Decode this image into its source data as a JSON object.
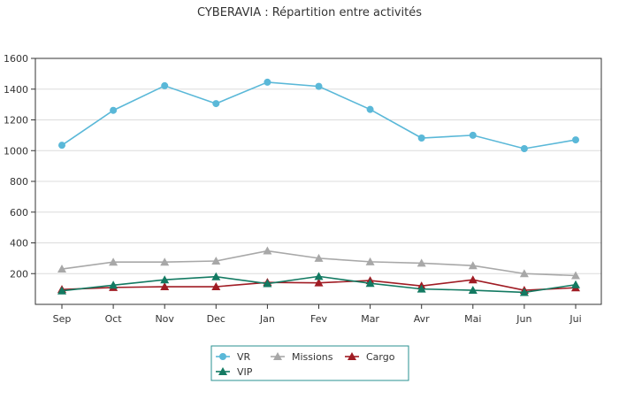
{
  "chart_data": {
    "type": "line",
    "title": "CYBERAVIA : Répartition entre activités",
    "xlabel": "",
    "ylabel": "",
    "ylim": [
      0,
      1600
    ],
    "yticks": [
      200,
      400,
      600,
      800,
      1000,
      1200,
      1400,
      1600
    ],
    "grid": true,
    "legend_position": "bottom",
    "categories": [
      "Sep",
      "Oct",
      "Nov",
      "Dec",
      "Jan",
      "Fev",
      "Mar",
      "Avr",
      "Mai",
      "Jun",
      "Jui"
    ],
    "series": [
      {
        "name": "VR",
        "color": "#5ab8d8",
        "marker": "circle",
        "values": [
          1035,
          1262,
          1422,
          1306,
          1445,
          1418,
          1268,
          1082,
          1100,
          1013,
          1070
        ]
      },
      {
        "name": "Missions",
        "color": "#a8a8a8",
        "marker": "triangle",
        "values": [
          230,
          275,
          275,
          282,
          348,
          300,
          277,
          268,
          252,
          200,
          187
        ]
      },
      {
        "name": "Cargo",
        "color": "#a01c24",
        "marker": "triangle",
        "values": [
          97,
          110,
          115,
          115,
          143,
          140,
          155,
          120,
          160,
          92,
          108
        ]
      },
      {
        "name": "VIP",
        "color": "#137a62",
        "marker": "triangle",
        "values": [
          88,
          125,
          160,
          180,
          135,
          182,
          137,
          100,
          92,
          78,
          128
        ]
      }
    ]
  }
}
